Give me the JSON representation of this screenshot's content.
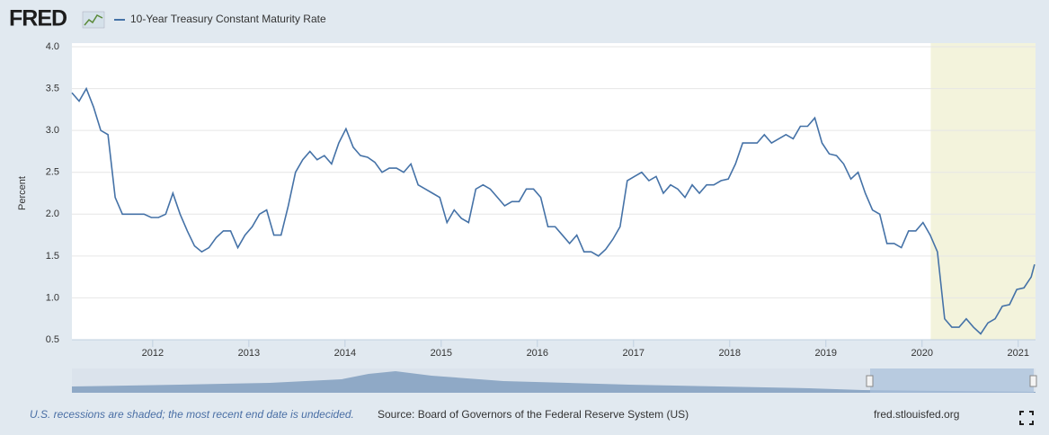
{
  "header": {
    "logo": "FRED"
  },
  "chart_data": {
    "type": "line",
    "ylabel": "Percent",
    "x": [
      2011.16,
      2011.235,
      2011.31,
      2011.385,
      2011.46,
      2011.535,
      2011.61,
      2011.685,
      2011.76,
      2011.835,
      2011.91,
      2011.985,
      2012.06,
      2012.135,
      2012.21,
      2012.285,
      2012.36,
      2012.435,
      2012.51,
      2012.585,
      2012.66,
      2012.735,
      2012.81,
      2012.885,
      2012.96,
      2013.035,
      2013.11,
      2013.185,
      2013.26,
      2013.335,
      2013.41,
      2013.485,
      2013.56,
      2013.635,
      2013.71,
      2013.785,
      2013.86,
      2013.935,
      2014.01,
      2014.085,
      2014.16,
      2014.235,
      2014.31,
      2014.385,
      2014.46,
      2014.535,
      2014.61,
      2014.685,
      2014.76,
      2014.835,
      2014.91,
      2014.985,
      2015.06,
      2015.135,
      2015.21,
      2015.285,
      2015.36,
      2015.435,
      2015.51,
      2015.585,
      2015.66,
      2015.735,
      2015.81,
      2015.885,
      2015.96,
      2016.035,
      2016.11,
      2016.185,
      2016.26,
      2016.335,
      2016.41,
      2016.485,
      2016.56,
      2016.635,
      2016.71,
      2016.785,
      2016.86,
      2016.935,
      2017.01,
      2017.085,
      2017.16,
      2017.235,
      2017.31,
      2017.385,
      2017.46,
      2017.535,
      2017.61,
      2017.685,
      2017.76,
      2017.835,
      2017.91,
      2017.985,
      2018.06,
      2018.135,
      2018.21,
      2018.285,
      2018.36,
      2018.435,
      2018.51,
      2018.585,
      2018.66,
      2018.735,
      2018.81,
      2018.885,
      2018.96,
      2019.035,
      2019.11,
      2019.185,
      2019.26,
      2019.335,
      2019.41,
      2019.485,
      2019.56,
      2019.635,
      2019.71,
      2019.785,
      2019.86,
      2019.935,
      2020.01,
      2020.085,
      2020.16,
      2020.235,
      2020.31,
      2020.385,
      2020.46,
      2020.535,
      2020.61,
      2020.685,
      2020.76,
      2020.835,
      2020.91,
      2020.985,
      2021.06,
      2021.135,
      2021.17
    ],
    "series": [
      {
        "name": "10-Year Treasury Constant Maturity Rate",
        "color": "#4572a7",
        "values": [
          3.45,
          3.35,
          3.5,
          3.28,
          3.0,
          2.95,
          2.2,
          2.0,
          2.0,
          2.0,
          2.0,
          1.96,
          1.96,
          2.0,
          2.25,
          2.0,
          1.8,
          1.62,
          1.55,
          1.6,
          1.72,
          1.8,
          1.8,
          1.6,
          1.75,
          1.85,
          2.0,
          2.05,
          1.75,
          1.75,
          2.1,
          2.5,
          2.65,
          2.75,
          2.65,
          2.7,
          2.6,
          2.85,
          3.02,
          2.8,
          2.7,
          2.68,
          2.62,
          2.5,
          2.55,
          2.55,
          2.5,
          2.6,
          2.35,
          2.3,
          2.25,
          2.2,
          1.9,
          2.05,
          1.95,
          1.9,
          2.3,
          2.35,
          2.3,
          2.2,
          2.1,
          2.15,
          2.15,
          2.3,
          2.3,
          2.2,
          1.85,
          1.85,
          1.75,
          1.65,
          1.75,
          1.55,
          1.55,
          1.5,
          1.58,
          1.7,
          1.85,
          2.4,
          2.45,
          2.5,
          2.4,
          2.45,
          2.25,
          2.35,
          2.3,
          2.2,
          2.35,
          2.25,
          2.35,
          2.35,
          2.4,
          2.42,
          2.6,
          2.85,
          2.85,
          2.85,
          2.95,
          2.85,
          2.9,
          2.95,
          2.9,
          3.05,
          3.05,
          3.15,
          2.85,
          2.72,
          2.7,
          2.6,
          2.42,
          2.5,
          2.25,
          2.05,
          2.0,
          1.65,
          1.65,
          1.6,
          1.8,
          1.8,
          1.9,
          1.75,
          1.55,
          0.75,
          0.65,
          0.65,
          0.75,
          0.65,
          0.57,
          0.7,
          0.75,
          0.9,
          0.92,
          1.1,
          1.12,
          1.25,
          1.4
        ]
      }
    ],
    "recessions": [
      {
        "start": 2020.09,
        "end": 2021.18,
        "color": "#f3f3dc"
      }
    ],
    "xlim": [
      2011.16,
      2021.18
    ],
    "xticks": [
      2012,
      2013,
      2014,
      2015,
      2016,
      2017,
      2018,
      2019,
      2020,
      2021
    ],
    "ylim": [
      0.5,
      4.0
    ],
    "yticks": [
      {
        "value": 0.5,
        "label": "0.5"
      },
      {
        "value": 1,
        "label": "1.0"
      },
      {
        "value": 1.5,
        "label": "1.5"
      },
      {
        "value": 2,
        "label": "2.0"
      },
      {
        "value": 2.5,
        "label": "2.5"
      },
      {
        "value": 3,
        "label": "3.0"
      },
      {
        "value": 3.5,
        "label": "3.5"
      },
      {
        "value": 4,
        "label": "4.0"
      }
    ],
    "grid": true
  },
  "footer": {
    "note": "U.S. recessions are shaded; the most recent end date is undecided.",
    "source": "Source: Board of Governors of the Federal Reserve System (US)",
    "url": "fred.stlouisfed.org"
  }
}
